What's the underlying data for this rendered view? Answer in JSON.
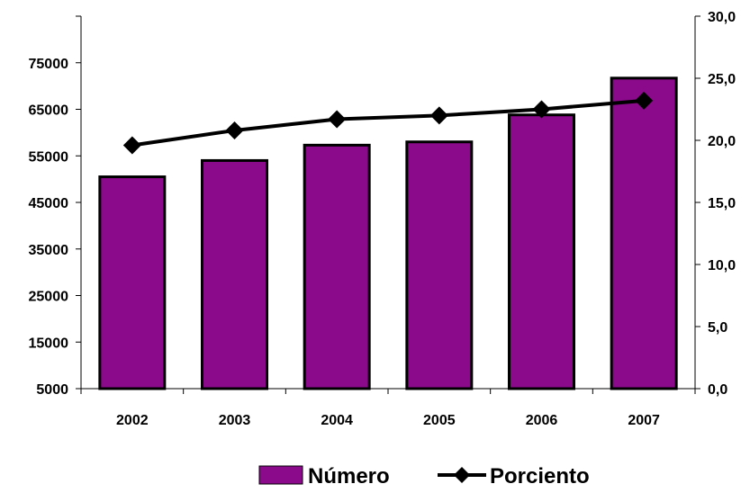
{
  "chart_data": {
    "type": "bar",
    "categories": [
      "2002",
      "2003",
      "2004",
      "2005",
      "2006",
      "2007"
    ],
    "series": [
      {
        "name": "Número",
        "type": "bar",
        "axis": "left",
        "values": [
          50500,
          54000,
          57300,
          58000,
          63800,
          71700
        ],
        "color": "#8B0A8B"
      },
      {
        "name": "Porciento",
        "type": "line",
        "axis": "right",
        "values": [
          19.6,
          20.8,
          21.7,
          22.0,
          22.5,
          23.2
        ],
        "color": "#000000",
        "marker": "diamond"
      }
    ],
    "y_left": {
      "ylim": [
        5000,
        85000
      ],
      "ticks": [
        5000,
        15000,
        25000,
        35000,
        45000,
        55000,
        65000,
        75000
      ]
    },
    "y_right": {
      "ylim": [
        0,
        30
      ],
      "ticks": [
        0,
        5,
        10,
        15,
        20,
        25,
        30
      ],
      "tick_labels": [
        "0,0",
        "5,0",
        "10,0",
        "15,0",
        "20,0",
        "25,0",
        "30,0"
      ]
    },
    "title": "",
    "xlabel": "",
    "ylabel": "",
    "grid": false,
    "legend_position": "bottom"
  }
}
